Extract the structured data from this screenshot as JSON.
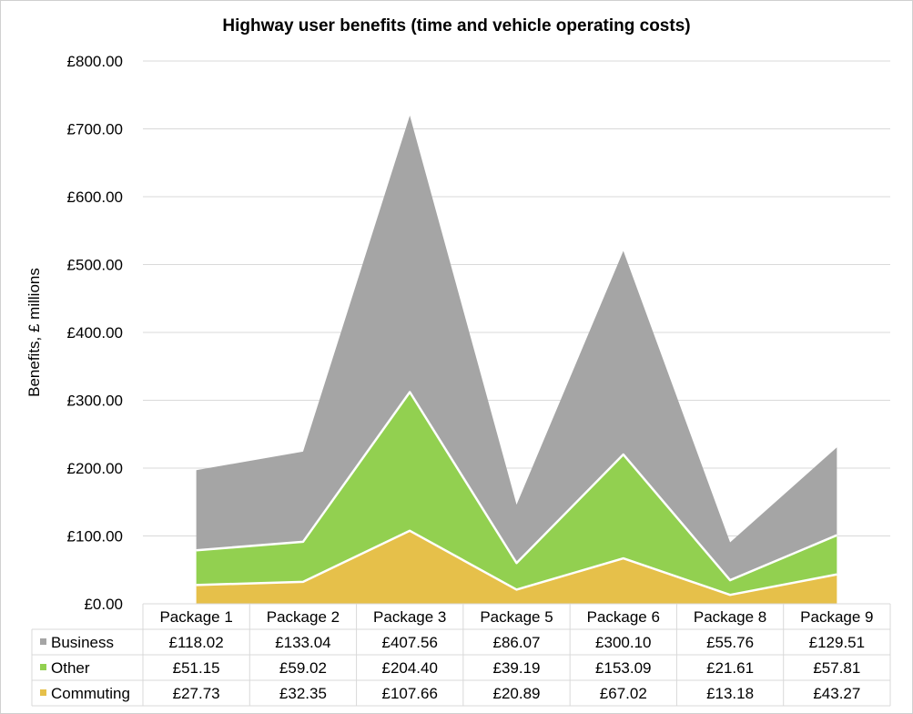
{
  "chart_data": {
    "type": "area",
    "stacked": true,
    "title": "Highway user benefits (time and vehicle operating costs)",
    "ylabel": "Benefits, £ millions",
    "xlabel": "",
    "ylim": [
      0,
      800
    ],
    "yticks": [
      0,
      100,
      200,
      300,
      400,
      500,
      600,
      700,
      800
    ],
    "ytick_labels": [
      "£0.00",
      "£100.00",
      "£200.00",
      "£300.00",
      "£400.00",
      "£500.00",
      "£600.00",
      "£700.00",
      "£800.00"
    ],
    "categories": [
      "Package 1",
      "Package 2",
      "Package 3",
      "Package 5",
      "Package 6",
      "Package 8",
      "Package 9"
    ],
    "stack_order": [
      "Commuting",
      "Other",
      "Business"
    ],
    "series": [
      {
        "name": "Business",
        "color": "#a5a5a5",
        "values": [
          118.02,
          133.04,
          407.56,
          86.07,
          300.1,
          55.76,
          129.51
        ],
        "labels": [
          "£118.02",
          "£133.04",
          "£407.56",
          "£86.07",
          "£300.10",
          "£55.76",
          "£129.51"
        ]
      },
      {
        "name": "Other",
        "color": "#92d050",
        "values": [
          51.15,
          59.02,
          204.4,
          39.19,
          153.09,
          21.61,
          57.81
        ],
        "labels": [
          "£51.15",
          "£59.02",
          "£204.40",
          "£39.19",
          "£153.09",
          "£21.61",
          "£57.81"
        ]
      },
      {
        "name": "Commuting",
        "color": "#e6c04a",
        "values": [
          27.73,
          32.35,
          107.66,
          20.89,
          67.02,
          13.18,
          43.27
        ],
        "labels": [
          "£27.73",
          "£32.35",
          "£107.66",
          "£20.89",
          "£67.02",
          "£13.18",
          "£43.27"
        ]
      }
    ],
    "grid": true,
    "legend": "data-table"
  }
}
